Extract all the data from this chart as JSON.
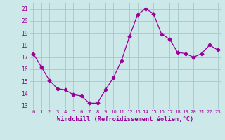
{
  "x": [
    0,
    1,
    2,
    3,
    4,
    5,
    6,
    7,
    8,
    9,
    10,
    11,
    12,
    13,
    14,
    15,
    16,
    17,
    18,
    19,
    20,
    21,
    22,
    23
  ],
  "y": [
    17.3,
    16.2,
    15.1,
    14.4,
    14.3,
    13.9,
    13.8,
    13.2,
    13.2,
    14.3,
    15.3,
    16.7,
    18.7,
    20.5,
    21.0,
    20.6,
    18.9,
    18.5,
    17.4,
    17.3,
    17.0,
    17.3,
    18.0,
    17.6
  ],
  "line_color": "#990099",
  "marker": "D",
  "marker_size": 2.5,
  "bg_color": "#cce8e8",
  "grid_color": "#aacccc",
  "xlabel": "Windchill (Refroidissement éolien,°C)",
  "xlabel_color": "#990099",
  "tick_color": "#990099",
  "ylim": [
    12.7,
    21.5
  ],
  "yticks": [
    13,
    14,
    15,
    16,
    17,
    18,
    19,
    20,
    21
  ],
  "xticks": [
    0,
    1,
    2,
    3,
    4,
    5,
    6,
    7,
    8,
    9,
    10,
    11,
    12,
    13,
    14,
    15,
    16,
    17,
    18,
    19,
    20,
    21,
    22,
    23
  ],
  "xlim": [
    -0.5,
    23.5
  ]
}
